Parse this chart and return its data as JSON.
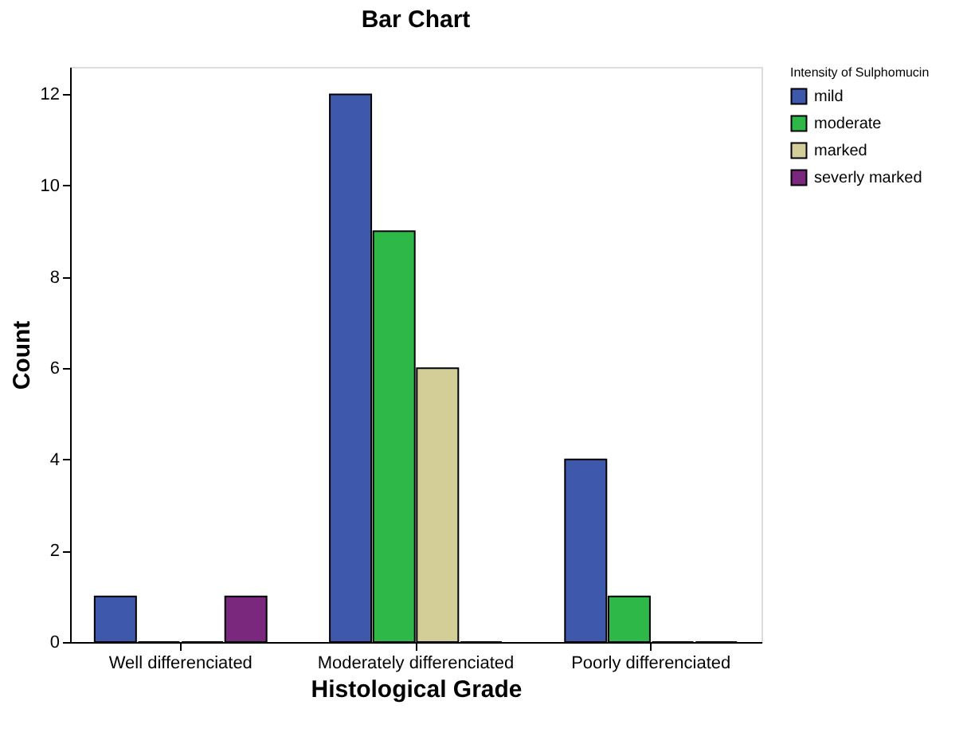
{
  "chart_data": {
    "type": "bar",
    "title": "Bar Chart",
    "xlabel": "Histological Grade",
    "ylabel": "Count",
    "legend_title": "Intensity of Sulphomucin",
    "categories": [
      "Well differenciated",
      "Moderately differenciated",
      "Poorly differenciated"
    ],
    "series": [
      {
        "name": "mild",
        "color": "#3e58ac",
        "values": [
          1,
          12,
          4
        ]
      },
      {
        "name": "moderate",
        "color": "#2eb848",
        "values": [
          0,
          9,
          1
        ]
      },
      {
        "name": "marked",
        "color": "#d3ce97",
        "values": [
          0,
          6,
          0
        ]
      },
      {
        "name": "severly marked",
        "color": "#79287e",
        "values": [
          1,
          0,
          0
        ]
      }
    ],
    "ylim": [
      0,
      12.6
    ],
    "yticks": [
      0,
      2,
      4,
      6,
      8,
      10,
      12
    ],
    "grid": false,
    "legend": "top right"
  }
}
